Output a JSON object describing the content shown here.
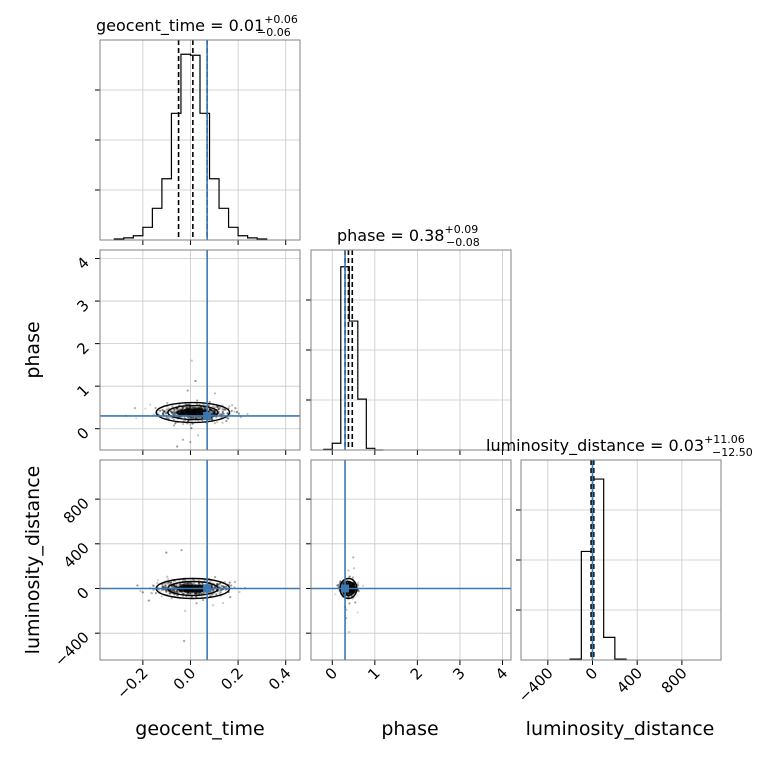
{
  "chart_data": {
    "type": "corner",
    "parameters": [
      "geocent_time",
      "phase",
      "luminosity_distance"
    ],
    "titles": {
      "geocent_time": {
        "prefix": "geocent_time = 0.01",
        "sup": "+0.06",
        "sub": "−0.06"
      },
      "phase": {
        "prefix": "phase = 0.38",
        "sup": "+0.09",
        "sub": "−0.08"
      },
      "luminosity_distance": {
        "prefix": "luminosity_distance = 0.03",
        "sup": "+11.06",
        "sub": "−12.50"
      }
    },
    "axes": {
      "geocent_time": {
        "label": "geocent_time",
        "range": [
          -0.38,
          0.46
        ],
        "ticks": [
          -0.2,
          0.0,
          0.2,
          0.4
        ],
        "tick_labels": [
          "−0.2",
          "0.0",
          "0.2",
          "0.4"
        ]
      },
      "phase": {
        "label": "phase",
        "range": [
          -0.5,
          4.2
        ],
        "ticks": [
          0,
          1,
          2,
          3,
          4
        ],
        "tick_labels": [
          "0",
          "1",
          "2",
          "3",
          "4"
        ]
      },
      "luminosity_distance": {
        "label": "luminosity_distance",
        "range": [
          -640,
          1150
        ],
        "ticks": [
          -400,
          0,
          400,
          800
        ],
        "tick_labels": [
          "−400",
          "0",
          "400",
          "800"
        ]
      }
    },
    "truths": {
      "geocent_time": 0.07,
      "phase": 0.3,
      "luminosity_distance": 0
    },
    "quantiles": {
      "geocent_time": [
        -0.05,
        0.01,
        0.07
      ],
      "phase": [
        0.3,
        0.38,
        0.47
      ],
      "luminosity_distance": [
        -12.47,
        0.03,
        11.09
      ]
    },
    "histograms": {
      "geocent_time": {
        "edges": [
          -0.32,
          -0.28,
          -0.24,
          -0.2,
          -0.16,
          -0.12,
          -0.08,
          -0.04,
          0.0,
          0.04,
          0.08,
          0.12,
          0.16,
          0.2,
          0.24,
          0.28,
          0.32
        ],
        "counts": [
          1,
          2,
          4,
          12,
          30,
          58,
          120,
          176,
          175,
          120,
          58,
          30,
          12,
          4,
          2,
          1
        ],
        "ymax": 180
      },
      "phase": {
        "edges": [
          -0.2,
          0.0,
          0.2,
          0.4,
          0.6,
          0.8,
          1.0,
          1.2
        ],
        "counts": [
          2,
          20,
          540,
          380,
          150,
          5,
          0
        ],
        "ymax": 560
      },
      "luminosity_distance": {
        "edges": [
          -200,
          -100,
          0,
          100,
          200,
          300
        ],
        "counts": [
          1,
          120,
          200,
          25,
          1
        ],
        "ymax": 210
      }
    },
    "scatter_extent": {
      "phase_vs_geocent_time": {
        "x_center": 0.01,
        "x_spread": 0.07,
        "y_center": 0.38,
        "y_spread": 0.09
      },
      "luminosity_distance_vs_geocent_time": {
        "x_center": 0.01,
        "x_spread": 0.07,
        "y_center": 0.0,
        "y_spread": 30
      },
      "luminosity_distance_vs_phase": {
        "x_center": 0.38,
        "x_spread": 0.09,
        "y_center": 0.0,
        "y_spread": 30
      }
    },
    "grid": true
  }
}
